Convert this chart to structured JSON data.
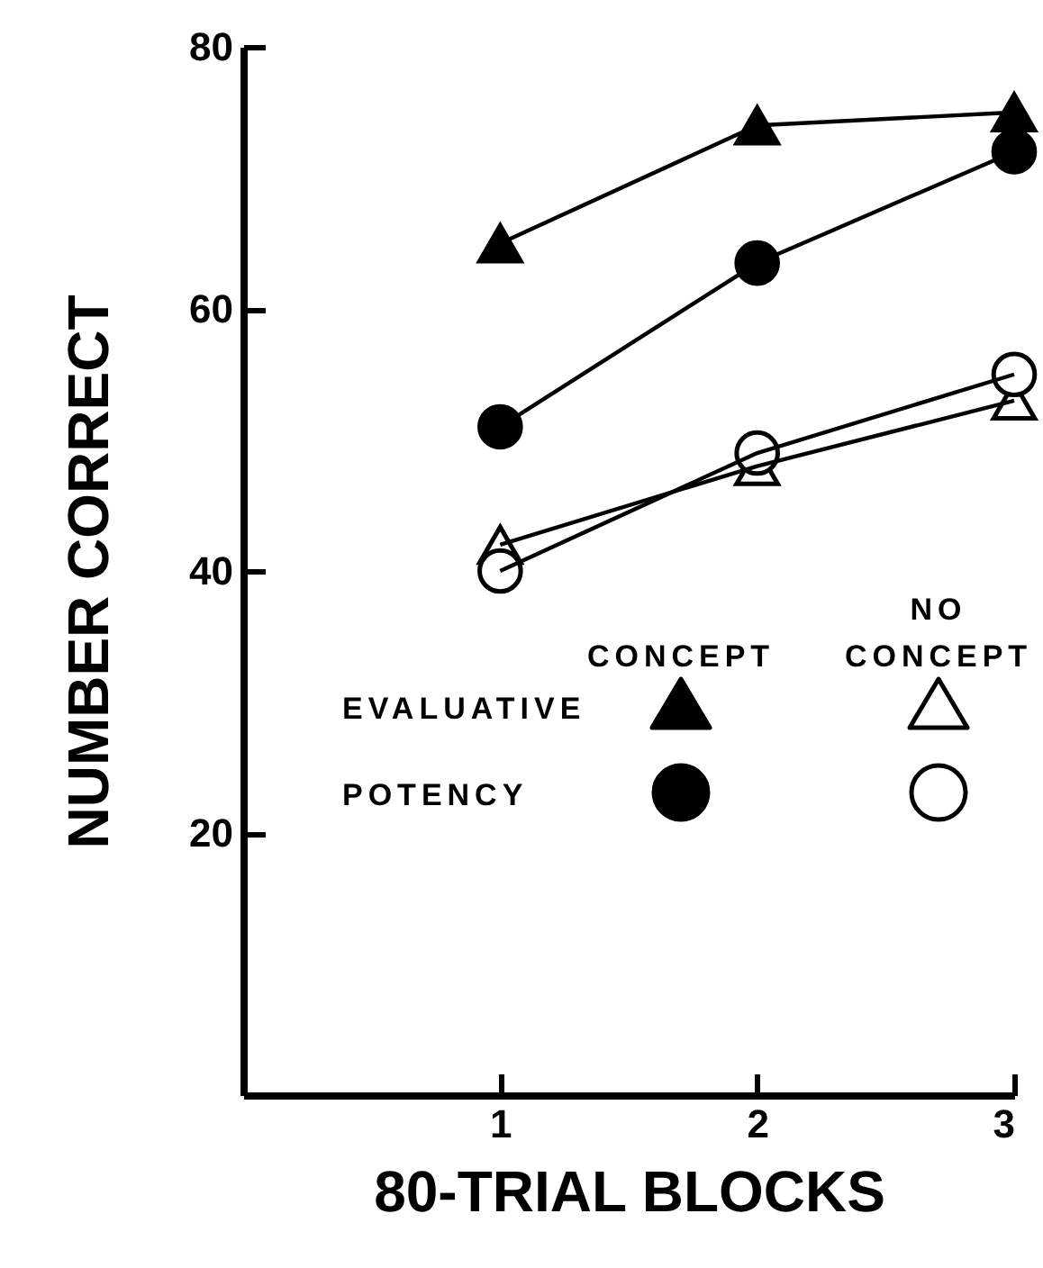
{
  "chart_data": {
    "type": "line",
    "xlabel": "80-TRIAL BLOCKS",
    "ylabel": "NUMBER CORRECT",
    "x": [
      1,
      2,
      3
    ],
    "xlim": [
      0,
      3
    ],
    "xticks": [
      1,
      2,
      3
    ],
    "ylim": [
      0,
      80
    ],
    "yticks": [
      20,
      40,
      60,
      80
    ],
    "grid": false,
    "annotations": [
      "CONCEPT",
      "NO CONCEPT",
      "EVALUATIVE",
      "POTENCY"
    ],
    "series": [
      {
        "color": "#000000",
        "colors": [
          "#000000",
          "#000000",
          "#000000"
        ],
        "marker": "triangle",
        "values": [
          65,
          74,
          75
        ]
      },
      {
        "color": "#000000",
        "colors": [
          "#000000",
          "#000000",
          "#000000"
        ],
        "marker": "circle",
        "values": [
          51,
          63.5,
          72
        ]
      },
      {
        "color": "#000000",
        "colors": [
          "#ffffff",
          "#ffffff",
          "#ffffff"
        ],
        "marker": "triangle",
        "values": [
          42,
          48,
          53
        ]
      },
      {
        "color": "#000000",
        "colors": [
          "#ffffff",
          "#ffffff",
          "#ffffff"
        ],
        "marker": "circle",
        "values": [
          40,
          49,
          55
        ]
      }
    ]
  }
}
